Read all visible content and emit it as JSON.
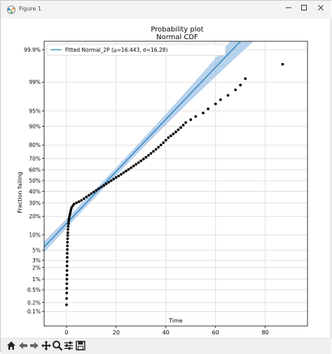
{
  "window": {
    "title": "Figure 1",
    "controls": [
      "minimize",
      "maximize",
      "close"
    ]
  },
  "toolbar": {
    "buttons": [
      "home-icon",
      "back-arrow-icon",
      "forward-arrow-icon",
      "pan-icon",
      "zoom-icon",
      "configure-subplots-icon",
      "save-icon"
    ]
  },
  "chart_data": {
    "type": "scatter",
    "title": "Probability plot",
    "subtitle": "Normal CDF",
    "xlabel": "Time",
    "ylabel": "Fraction failing",
    "xlim": [
      -9,
      97
    ],
    "x_ticks": [
      0,
      20,
      40,
      60,
      80
    ],
    "y_scale": "normal probability",
    "y_ticks": [
      "0.1%",
      "0.2%",
      "0.5%",
      "1%",
      "2%",
      "3%",
      "5%",
      "10%",
      "20%",
      "30%",
      "40%",
      "50%",
      "60%",
      "70%",
      "80%",
      "90%",
      "95%",
      "99%",
      "99.9%"
    ],
    "y_tick_values": [
      0.001,
      0.002,
      0.005,
      0.01,
      0.02,
      0.03,
      0.05,
      0.1,
      0.2,
      0.3,
      0.4,
      0.5,
      0.6,
      0.7,
      0.8,
      0.9,
      0.95,
      0.99,
      0.999
    ],
    "grid": true,
    "legend": {
      "placement": "top-left",
      "entries": [
        "Fitted Normal_2P (μ=16.443, σ=16.28)"
      ]
    },
    "fit": {
      "mu": 16.443,
      "sigma": 16.28,
      "color": "#1f77b4",
      "band_color": "#9dc3e6"
    },
    "series": [
      {
        "name": "",
        "marker_color": "#000000",
        "points": [
          [
            0.02,
            0.0017
          ],
          [
            0.05,
            0.0027
          ],
          [
            0.08,
            0.004
          ],
          [
            0.1,
            0.0055
          ],
          [
            0.12,
            0.0075
          ],
          [
            0.15,
            0.01
          ],
          [
            0.18,
            0.013
          ],
          [
            0.2,
            0.017
          ],
          [
            0.22,
            0.022
          ],
          [
            0.25,
            0.028
          ],
          [
            0.28,
            0.035
          ],
          [
            0.3,
            0.043
          ],
          [
            0.33,
            0.052
          ],
          [
            0.36,
            0.062
          ],
          [
            0.4,
            0.073
          ],
          [
            0.45,
            0.085
          ],
          [
            0.5,
            0.098
          ],
          [
            0.55,
            0.11
          ],
          [
            0.6,
            0.125
          ],
          [
            0.7,
            0.14
          ],
          [
            0.8,
            0.155
          ],
          [
            0.9,
            0.17
          ],
          [
            1.0,
            0.185
          ],
          [
            1.2,
            0.2
          ],
          [
            1.4,
            0.215
          ],
          [
            1.6,
            0.23
          ],
          [
            1.8,
            0.245
          ],
          [
            2.0,
            0.26
          ],
          [
            2.5,
            0.275
          ],
          [
            3.0,
            0.29
          ],
          [
            4.0,
            0.3
          ],
          [
            5.0,
            0.31
          ],
          [
            6.0,
            0.32
          ],
          [
            7.0,
            0.335
          ],
          [
            8.0,
            0.35
          ],
          [
            9.0,
            0.365
          ],
          [
            10.0,
            0.38
          ],
          [
            11.0,
            0.395
          ],
          [
            12.0,
            0.41
          ],
          [
            13.0,
            0.425
          ],
          [
            14.0,
            0.44
          ],
          [
            15.0,
            0.455
          ],
          [
            16.0,
            0.47
          ],
          [
            17.0,
            0.485
          ],
          [
            18.0,
            0.5
          ],
          [
            19.0,
            0.515
          ],
          [
            20.0,
            0.53
          ],
          [
            21.0,
            0.545
          ],
          [
            22.0,
            0.56
          ],
          [
            23.0,
            0.575
          ],
          [
            24.0,
            0.59
          ],
          [
            25.0,
            0.605
          ],
          [
            26.0,
            0.62
          ],
          [
            27.0,
            0.635
          ],
          [
            28.0,
            0.65
          ],
          [
            29.0,
            0.665
          ],
          [
            30.0,
            0.68
          ],
          [
            31.0,
            0.695
          ],
          [
            32.0,
            0.71
          ],
          [
            33.0,
            0.725
          ],
          [
            34.0,
            0.74
          ],
          [
            35.0,
            0.755
          ],
          [
            36.0,
            0.77
          ],
          [
            37.0,
            0.785
          ],
          [
            38.0,
            0.8
          ],
          [
            39.0,
            0.815
          ],
          [
            40.0,
            0.83
          ],
          [
            41.0,
            0.845
          ],
          [
            42.0,
            0.855
          ],
          [
            43.0,
            0.865
          ],
          [
            44.0,
            0.875
          ],
          [
            45.0,
            0.885
          ],
          [
            46.0,
            0.895
          ],
          [
            47.0,
            0.905
          ],
          [
            48.0,
            0.915
          ],
          [
            50.0,
            0.925
          ],
          [
            52.0,
            0.935
          ],
          [
            55.0,
            0.945
          ],
          [
            57.0,
            0.955
          ],
          [
            60.0,
            0.965
          ],
          [
            62.0,
            0.972
          ],
          [
            65.0,
            0.978
          ],
          [
            68.0,
            0.984
          ],
          [
            70.0,
            0.988
          ],
          [
            72.0,
            0.992
          ],
          [
            87.0,
            0.997
          ]
        ]
      }
    ]
  }
}
